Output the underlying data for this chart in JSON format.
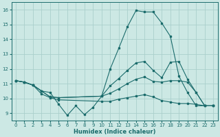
{
  "title": "",
  "xlabel": "Humidex (Indice chaleur)",
  "background_color": "#cce8e4",
  "grid_color": "#aacfcc",
  "line_color": "#1a6b6b",
  "xlim": [
    -0.5,
    23.5
  ],
  "ylim": [
    8.5,
    16.5
  ],
  "xticks": [
    0,
    1,
    2,
    3,
    4,
    5,
    6,
    7,
    8,
    9,
    10,
    11,
    12,
    13,
    14,
    15,
    16,
    17,
    18,
    19,
    20,
    21,
    22,
    23
  ],
  "yticks": [
    9,
    10,
    11,
    12,
    13,
    14,
    15,
    16
  ],
  "lines": [
    {
      "x": [
        0,
        1,
        2,
        3,
        4,
        5,
        6,
        7,
        8,
        9,
        10,
        11,
        12,
        13,
        14,
        15,
        16,
        17,
        18,
        19,
        20,
        21,
        22,
        23
      ],
      "y": [
        11.2,
        11.1,
        10.9,
        10.5,
        10.4,
        9.6,
        8.85,
        9.5,
        8.9,
        9.4,
        10.15,
        12.0,
        13.4,
        14.85,
        15.95,
        15.85,
        15.85,
        15.1,
        14.2,
        11.5,
        10.4,
        9.5,
        9.5,
        9.5
      ]
    },
    {
      "x": [
        0,
        1,
        2,
        3,
        4,
        5,
        10,
        11,
        12,
        13,
        14,
        15,
        16,
        17,
        18,
        19,
        20,
        21,
        22,
        23
      ],
      "y": [
        11.2,
        11.1,
        10.9,
        10.5,
        10.1,
        10.05,
        10.15,
        10.85,
        11.35,
        11.9,
        12.4,
        12.5,
        11.9,
        11.4,
        12.45,
        12.5,
        11.3,
        10.4,
        9.5,
        9.5
      ]
    },
    {
      "x": [
        0,
        1,
        2,
        3,
        4,
        5,
        10,
        11,
        12,
        13,
        14,
        15,
        16,
        17,
        18,
        19,
        20,
        21,
        22,
        23
      ],
      "y": [
        11.2,
        11.1,
        10.9,
        10.5,
        10.1,
        10.05,
        10.15,
        10.35,
        10.65,
        11.0,
        11.3,
        11.45,
        11.15,
        11.1,
        11.2,
        11.2,
        11.1,
        10.4,
        9.5,
        9.5
      ]
    },
    {
      "x": [
        0,
        1,
        2,
        3,
        4,
        5,
        10,
        11,
        12,
        13,
        14,
        15,
        16,
        17,
        18,
        19,
        20,
        21,
        22,
        23
      ],
      "y": [
        11.2,
        11.1,
        10.9,
        10.3,
        10.05,
        9.9,
        9.8,
        9.8,
        9.95,
        10.05,
        10.15,
        10.25,
        10.1,
        9.85,
        9.75,
        9.65,
        9.65,
        9.6,
        9.5,
        9.5
      ]
    }
  ]
}
